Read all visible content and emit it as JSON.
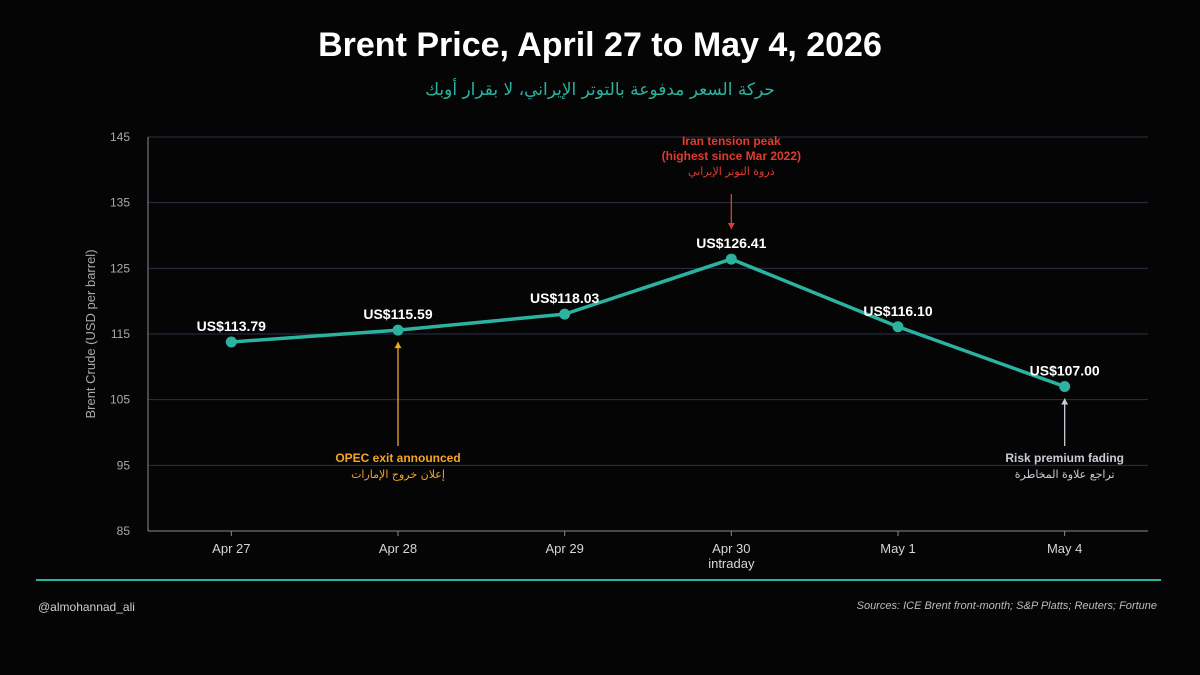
{
  "footer": {
    "handle": "@almohannad_ali",
    "sources": "Sources: ICE Brent front-month; S&P Platts; Reuters; Fortune"
  },
  "colors": {
    "background": "#050505",
    "line": "#2bb3a0",
    "grid": "#2a2f45",
    "opec_annotation": "#f5a623",
    "peak_annotation": "#e03c31",
    "fading_annotation": "#c8ccd6"
  },
  "chart_data": {
    "type": "line",
    "title": "Brent Price, April 27 to May 4, 2026",
    "subtitle": "حركة السعر مدفوعة بالتوتر الإيراني، لا بقرار أوبك",
    "ylabel": "Brent Crude (USD per barrel)",
    "xlabel": "",
    "ylim": [
      85,
      145
    ],
    "yticks": [
      85,
      95,
      105,
      115,
      125,
      135,
      145
    ],
    "grid": true,
    "categories": [
      "Apr 27",
      "Apr 28",
      "Apr 29",
      "Apr 30",
      "May 1",
      "May 4"
    ],
    "category_sublabels": [
      "",
      "",
      "",
      "intraday",
      "",
      ""
    ],
    "values": [
      113.79,
      115.59,
      118.03,
      126.41,
      116.1,
      107.0
    ],
    "value_labels": [
      "US$113.79",
      "US$115.59",
      "US$118.03",
      "US$126.41",
      "US$116.10",
      "US$107.00"
    ],
    "annotations": [
      {
        "category": "Apr 28",
        "placement": "below",
        "text": "OPEC exit announced",
        "text_ar": "إعلان خروج الإمارات",
        "color": "#f5a623"
      },
      {
        "category": "Apr 30",
        "placement": "above",
        "text": "Iran tension peak",
        "text2": "(highest since Mar 2022)",
        "text_ar": "ذروة التوتر الإيراني",
        "color": "#e03c31"
      },
      {
        "category": "May 4",
        "placement": "below",
        "text": "Risk premium fading",
        "text_ar": "تراجع علاوة المخاطرة",
        "color": "#c8ccd6"
      }
    ]
  }
}
